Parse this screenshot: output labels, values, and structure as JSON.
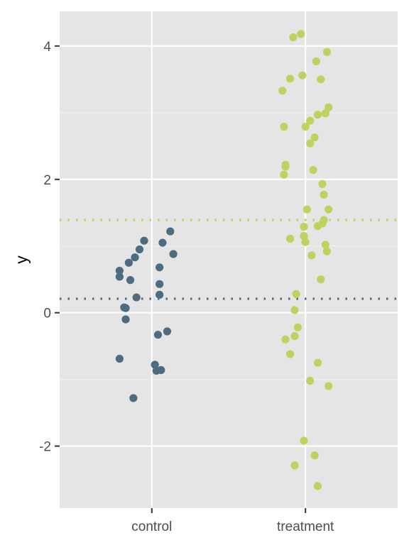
{
  "chart_data": {
    "type": "scatter",
    "title": "",
    "xlabel": "",
    "ylabel": "y",
    "categories": [
      "control",
      "treatment"
    ],
    "ylim": [
      -2.93,
      4.52
    ],
    "yticks": [
      -2,
      0,
      2,
      4
    ],
    "grid": true,
    "background": "#e5e5e5",
    "series": [
      {
        "category": "control",
        "color": "#4f6b80",
        "mean": 0.21,
        "points": [
          {
            "x": 0.95,
            "y": 1.08
          },
          {
            "x": 1.12,
            "y": 1.22
          },
          {
            "x": 0.92,
            "y": 0.95
          },
          {
            "x": 1.07,
            "y": 1.05
          },
          {
            "x": 1.14,
            "y": 0.88
          },
          {
            "x": 0.89,
            "y": 0.83
          },
          {
            "x": 0.85,
            "y": 0.75
          },
          {
            "x": 1.05,
            "y": 0.68
          },
          {
            "x": 0.79,
            "y": 0.63
          },
          {
            "x": 0.79,
            "y": 0.54
          },
          {
            "x": 0.86,
            "y": 0.49
          },
          {
            "x": 1.05,
            "y": 0.43
          },
          {
            "x": 1.05,
            "y": 0.27
          },
          {
            "x": 0.9,
            "y": 0.23
          },
          {
            "x": 0.82,
            "y": 0.08
          },
          {
            "x": 0.83,
            "y": 0.07
          },
          {
            "x": 0.83,
            "y": -0.1
          },
          {
            "x": 1.1,
            "y": -0.28
          },
          {
            "x": 1.04,
            "y": -0.33
          },
          {
            "x": 0.79,
            "y": -0.69
          },
          {
            "x": 1.02,
            "y": -0.78
          },
          {
            "x": 1.06,
            "y": -0.86
          },
          {
            "x": 1.03,
            "y": -0.87
          },
          {
            "x": 0.88,
            "y": -1.28
          }
        ]
      },
      {
        "category": "treatment",
        "color": "#bcd35f",
        "mean": 1.39,
        "points": [
          {
            "x": 1.97,
            "y": 4.18
          },
          {
            "x": 1.92,
            "y": 4.13
          },
          {
            "x": 2.14,
            "y": 3.91
          },
          {
            "x": 2.07,
            "y": 3.77
          },
          {
            "x": 1.98,
            "y": 3.56
          },
          {
            "x": 1.9,
            "y": 3.51
          },
          {
            "x": 2.1,
            "y": 3.5
          },
          {
            "x": 1.85,
            "y": 3.33
          },
          {
            "x": 2.15,
            "y": 3.08
          },
          {
            "x": 2.13,
            "y": 2.99
          },
          {
            "x": 2.08,
            "y": 2.97
          },
          {
            "x": 2.03,
            "y": 2.88
          },
          {
            "x": 1.86,
            "y": 2.79
          },
          {
            "x": 2.0,
            "y": 2.79
          },
          {
            "x": 2.06,
            "y": 2.63
          },
          {
            "x": 2.03,
            "y": 2.54
          },
          {
            "x": 1.87,
            "y": 2.22
          },
          {
            "x": 1.87,
            "y": 2.19
          },
          {
            "x": 2.05,
            "y": 2.14
          },
          {
            "x": 1.86,
            "y": 2.07
          },
          {
            "x": 2.11,
            "y": 1.93
          },
          {
            "x": 2.12,
            "y": 1.77
          },
          {
            "x": 2.01,
            "y": 1.55
          },
          {
            "x": 2.15,
            "y": 1.55
          },
          {
            "x": 2.12,
            "y": 1.39
          },
          {
            "x": 2.11,
            "y": 1.34
          },
          {
            "x": 2.08,
            "y": 1.3
          },
          {
            "x": 1.99,
            "y": 1.29
          },
          {
            "x": 1.99,
            "y": 1.15
          },
          {
            "x": 1.9,
            "y": 1.11
          },
          {
            "x": 2.0,
            "y": 1.06
          },
          {
            "x": 2.13,
            "y": 1.02
          },
          {
            "x": 2.14,
            "y": 0.92
          },
          {
            "x": 2.04,
            "y": 0.86
          },
          {
            "x": 2.1,
            "y": 0.5
          },
          {
            "x": 1.94,
            "y": 0.28
          },
          {
            "x": 1.93,
            "y": 0.04
          },
          {
            "x": 1.95,
            "y": -0.22
          },
          {
            "x": 1.93,
            "y": -0.35
          },
          {
            "x": 1.87,
            "y": -0.4
          },
          {
            "x": 1.9,
            "y": -0.62
          },
          {
            "x": 2.08,
            "y": -0.75
          },
          {
            "x": 2.03,
            "y": -1.02
          },
          {
            "x": 2.15,
            "y": -1.1
          },
          {
            "x": 1.99,
            "y": -1.92
          },
          {
            "x": 2.06,
            "y": -2.14
          },
          {
            "x": 1.93,
            "y": -2.29
          },
          {
            "x": 2.08,
            "y": -2.6
          }
        ]
      }
    ]
  }
}
